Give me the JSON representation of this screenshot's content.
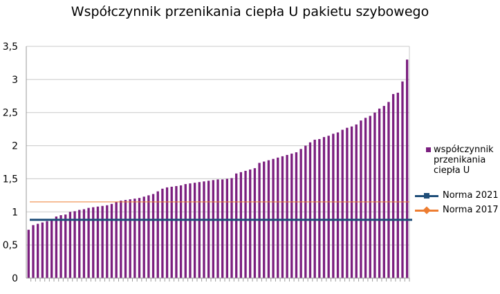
{
  "chart_data": {
    "type": "bar",
    "title": "Współczynnik przenikania ciepła U pakietu szybowego",
    "xlabel": "",
    "ylabel": "",
    "ylim": [
      0,
      3.5
    ],
    "yticks": [
      "0",
      "0,5",
      "1",
      "1,5",
      "2",
      "2,5",
      "3",
      "3,5"
    ],
    "grid": true,
    "legend_position": "right",
    "series": [
      {
        "name": "współczynnik przenikania ciepła U",
        "type": "bar",
        "color": "#7b1f7f",
        "values": [
          0.73,
          0.8,
          0.82,
          0.84,
          0.86,
          0.87,
          0.93,
          0.95,
          0.96,
          1.0,
          1.01,
          1.03,
          1.04,
          1.06,
          1.07,
          1.08,
          1.09,
          1.1,
          1.12,
          1.15,
          1.17,
          1.18,
          1.19,
          1.2,
          1.21,
          1.23,
          1.25,
          1.27,
          1.31,
          1.35,
          1.37,
          1.38,
          1.39,
          1.4,
          1.42,
          1.43,
          1.44,
          1.45,
          1.46,
          1.47,
          1.48,
          1.49,
          1.49,
          1.5,
          1.51,
          1.58,
          1.6,
          1.62,
          1.64,
          1.66,
          1.74,
          1.76,
          1.78,
          1.8,
          1.82,
          1.84,
          1.86,
          1.88,
          1.9,
          1.95,
          2.0,
          2.05,
          2.09,
          2.1,
          2.13,
          2.15,
          2.18,
          2.2,
          2.24,
          2.27,
          2.29,
          2.32,
          2.38,
          2.42,
          2.45,
          2.5,
          2.56,
          2.6,
          2.66,
          2.78,
          2.8,
          2.97,
          3.3
        ]
      },
      {
        "name": "Norma 2021",
        "type": "line",
        "color": "#1f4e79",
        "value": 0.88
      },
      {
        "name": "Norma 2017",
        "type": "line",
        "color": "#ed7d31",
        "value": 1.15
      }
    ]
  }
}
